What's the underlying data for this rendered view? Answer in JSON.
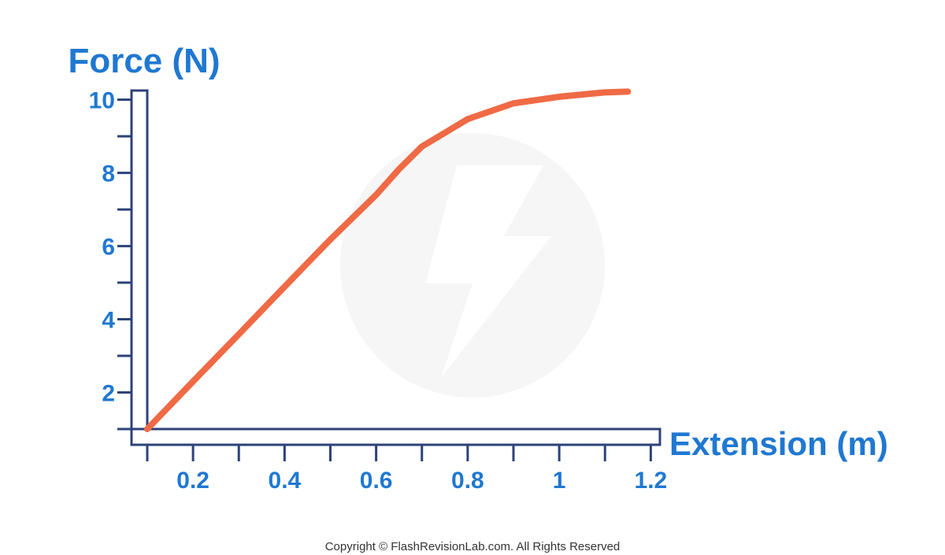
{
  "chart_data": {
    "type": "line",
    "y_label": "Force (N)",
    "x_label": "Extension (m)",
    "x": [
      0.1,
      0.2,
      0.3,
      0.4,
      0.5,
      0.6,
      0.65,
      0.7,
      0.8,
      0.9,
      1.0,
      1.1,
      1.15
    ],
    "values": [
      1.0,
      2.3,
      3.59,
      4.89,
      6.18,
      7.4,
      8.1,
      8.72,
      9.47,
      9.9,
      10.08,
      10.2,
      10.22
    ],
    "color": "#ef6a45",
    "xlim": [
      0.1,
      1.22
    ],
    "ylim": [
      1,
      10.25
    ],
    "xticks": [
      0.2,
      0.4,
      0.6,
      0.8,
      1,
      1.2
    ],
    "yticks": [
      2,
      4,
      6,
      8,
      10
    ],
    "x_minor_ticks": [
      0.1,
      0.3,
      0.5,
      0.7,
      0.9,
      1.1
    ],
    "y_minor_ticks": [
      1,
      3,
      5,
      7,
      9
    ],
    "copyright": "Copyright © FlashRevisionLab.com. All Rights Reserved"
  }
}
